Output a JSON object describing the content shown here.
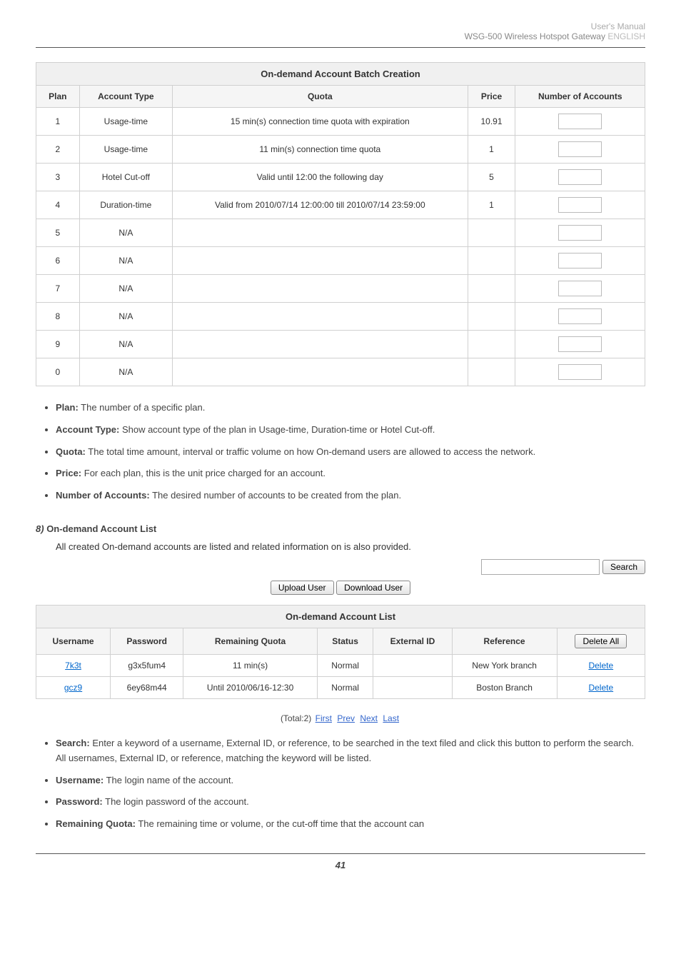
{
  "header": {
    "line1": "User's Manual",
    "line2_left": "WSG-500 Wireless Hotspot Gateway ",
    "line2_right": "ENGLISH"
  },
  "batch_table": {
    "title": "On-demand Account Batch Creation",
    "columns": [
      "Plan",
      "Account Type",
      "Quota",
      "Price",
      "Number of Accounts"
    ],
    "rows": [
      {
        "plan": "1",
        "type": "Usage-time",
        "quota": "15 min(s) connection time quota with expiration",
        "price": "10.91"
      },
      {
        "plan": "2",
        "type": "Usage-time",
        "quota": "11 min(s) connection time quota",
        "price": "1"
      },
      {
        "plan": "3",
        "type": "Hotel Cut-off",
        "quota": "Valid until 12:00 the following day",
        "price": "5"
      },
      {
        "plan": "4",
        "type": "Duration-time",
        "quota": "Valid from 2010/07/14 12:00:00 till 2010/07/14 23:59:00",
        "price": "1"
      },
      {
        "plan": "5",
        "type": "N/A",
        "quota": "",
        "price": ""
      },
      {
        "plan": "6",
        "type": "N/A",
        "quota": "",
        "price": ""
      },
      {
        "plan": "7",
        "type": "N/A",
        "quota": "",
        "price": ""
      },
      {
        "plan": "8",
        "type": "N/A",
        "quota": "",
        "price": ""
      },
      {
        "plan": "9",
        "type": "N/A",
        "quota": "",
        "price": ""
      },
      {
        "plan": "0",
        "type": "N/A",
        "quota": "",
        "price": ""
      }
    ]
  },
  "bullets1": {
    "plan": {
      "label": "Plan:",
      "text": " The number of a specific plan."
    },
    "acct": {
      "label": "Account Type:",
      "text": " Show account type of the plan in Usage-time, Duration-time or Hotel Cut-off."
    },
    "quota": {
      "label": "Quota:",
      "text": " The total time amount, interval or traffic volume on how On-demand users are allowed to access the network."
    },
    "price": {
      "label": "Price:",
      "text": " For each plan, this is the unit price charged for an account."
    },
    "num": {
      "label": "Number of Accounts:",
      "text": " The desired number of accounts to be created from the plan."
    }
  },
  "section8": {
    "num": "8)",
    "title": "On-demand Account List",
    "desc": "All created On-demand accounts are listed and related information on is also provided."
  },
  "search": {
    "button": "Search"
  },
  "upload_btn": "Upload User",
  "download_btn": "Download User",
  "list_table": {
    "title": "On-demand Account List",
    "columns": [
      "Username",
      "Password",
      "Remaining Quota",
      "Status",
      "External ID",
      "Reference"
    ],
    "delete_all": "Delete All",
    "rows": [
      {
        "user": "7k3t",
        "pass": "g3x5fum4",
        "quota": "11 min(s)",
        "status": "Normal",
        "ext": "",
        "ref": "New York branch",
        "del": "Delete"
      },
      {
        "user": "gcz9",
        "pass": "6ey68m44",
        "quota": "Until 2010/06/16-12:30",
        "status": "Normal",
        "ext": "",
        "ref": "Boston Branch",
        "del": "Delete"
      }
    ]
  },
  "pager": {
    "total": "(Total:2)",
    "first": "First",
    "prev": "Prev",
    "next": "Next",
    "last": "Last"
  },
  "bullets2": {
    "search": {
      "label": "Search:",
      "text": " Enter a keyword of a username, External ID, or reference, to be searched in the text filed and click this button to perform the search. All usernames, External ID, or reference, matching the keyword will be listed."
    },
    "user": {
      "label": "Username:",
      "text": " The login name of the account."
    },
    "pass": {
      "label": "Password:",
      "text": " The login password of the account."
    },
    "rq": {
      "label": "Remaining Quota:",
      "text": " The remaining time or volume, or the cut-off time that the account can"
    }
  },
  "footer": {
    "page": "41"
  }
}
